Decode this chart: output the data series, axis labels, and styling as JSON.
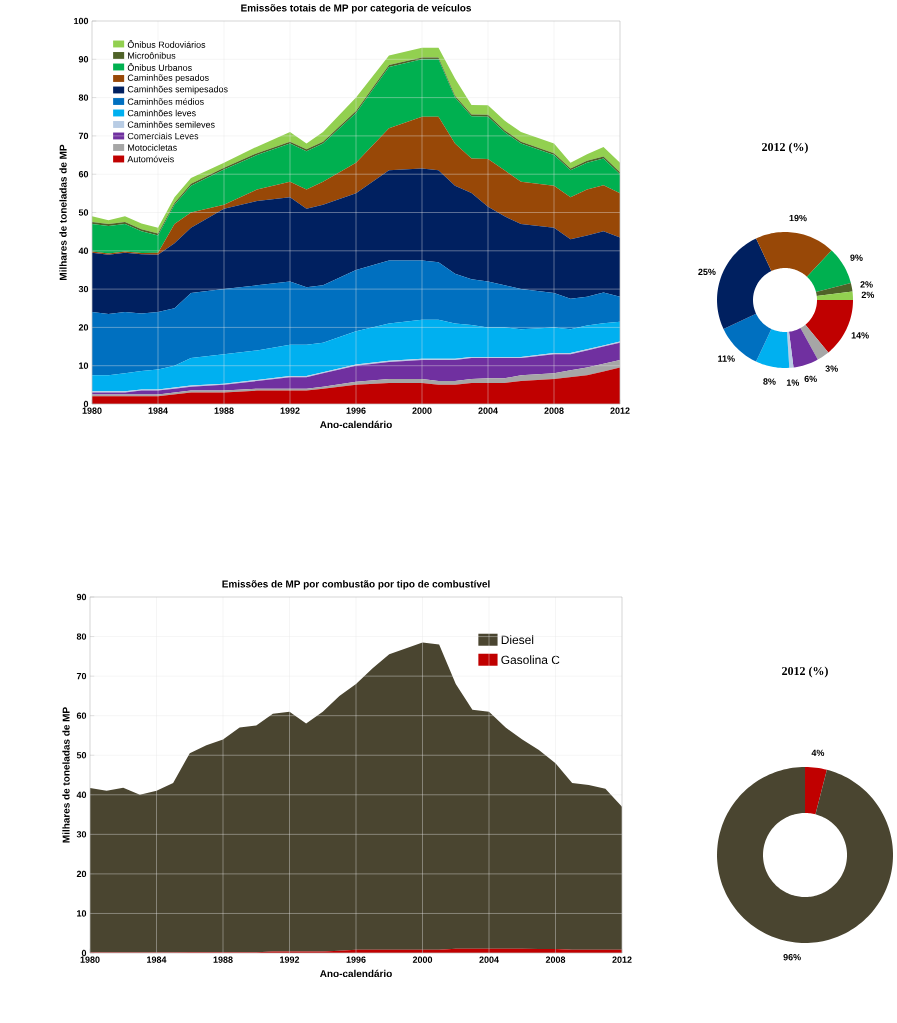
{
  "chart_data": [
    {
      "type": "area",
      "title": "Emissões totais de MP por categoria de veículos",
      "xlabel": "Ano-calendário",
      "ylabel": "Milhares de toneladas de MP",
      "stacked": true,
      "grid": true,
      "legend": "top left",
      "xlim": [
        1980,
        2012
      ],
      "ylim": [
        0,
        100
      ],
      "xticks": [
        1980,
        1984,
        1988,
        1992,
        1996,
        2000,
        2004,
        2008,
        2012
      ],
      "yticks": [
        0,
        10,
        20,
        30,
        40,
        50,
        60,
        70,
        80,
        90,
        100
      ],
      "x": [
        1980,
        1981,
        1982,
        1983,
        1984,
        1985,
        1986,
        1988,
        1990,
        1992,
        1993,
        1994,
        1996,
        1998,
        2000,
        2001,
        2002,
        2003,
        2004,
        2005,
        2006,
        2008,
        2009,
        2010,
        2011,
        2012
      ],
      "series": [
        {
          "name": "Automóveis",
          "color": "#c00000",
          "values": [
            2,
            2,
            2,
            2,
            2,
            2.5,
            3,
            3,
            3.5,
            3.5,
            3.5,
            4,
            5,
            5.5,
            5.5,
            5,
            5,
            5.5,
            5.5,
            5.5,
            6,
            6.5,
            7,
            7.5,
            8.5,
            9.5
          ]
        },
        {
          "name": "Motocicletas",
          "color": "#a6a6a6",
          "values": [
            0.5,
            0.5,
            0.5,
            0.5,
            0.5,
            0.5,
            0.5,
            0.5,
            0.5,
            0.5,
            0.5,
            0.5,
            0.8,
            1,
            1,
            1,
            1,
            1,
            1.2,
            1.2,
            1.5,
            1.5,
            1.8,
            2,
            2,
            2
          ]
        },
        {
          "name": "Comerciais Leves",
          "color": "#7030a0",
          "values": [
            0.5,
            0.5,
            0.5,
            1,
            1,
            1,
            1,
            1.5,
            2,
            3,
            3,
            3.5,
            4.2,
            4.5,
            5,
            5.5,
            5.5,
            5.5,
            5.3,
            5.3,
            4.5,
            5,
            4.2,
            4.5,
            4.5,
            4.5
          ]
        },
        {
          "name": "Caminhões semileves",
          "color": "#b8cce4",
          "values": [
            0.3,
            0.3,
            0.3,
            0.3,
            0.3,
            0.3,
            0.3,
            0.3,
            0.3,
            0.3,
            0.3,
            0.3,
            0.3,
            0.3,
            0.3,
            0.3,
            0.3,
            0.3,
            0.3,
            0.3,
            0.3,
            0.3,
            0.3,
            0.3,
            0.3,
            0.3
          ]
        },
        {
          "name": "Caminhões leves",
          "color": "#00b0f0",
          "values": [
            4.2,
            4.2,
            4.7,
            4.8,
            5.2,
            5.7,
            7.2,
            7.7,
            7.7,
            8.2,
            8.2,
            7.7,
            8.7,
            9.7,
            10.2,
            10.2,
            9.2,
            8.3,
            7.7,
            7.7,
            7.2,
            6.7,
            6.2,
            6.2,
            5.8,
            5.2
          ]
        },
        {
          "name": "Caminhões médios",
          "color": "#0070c0",
          "values": [
            16.5,
            16,
            16,
            15,
            15,
            15,
            17,
            17,
            17,
            16.5,
            15,
            15,
            16,
            16.5,
            15.5,
            15,
            13,
            12,
            12,
            11,
            10.5,
            9,
            8,
            7.5,
            8,
            6.5
          ]
        },
        {
          "name": "Caminhões semipesados",
          "color": "#002060",
          "values": [
            15.5,
            15.5,
            15.5,
            15.5,
            15,
            17,
            17,
            21,
            22,
            22,
            20.5,
            21,
            20,
            23.5,
            24,
            24,
            23,
            22.5,
            19.5,
            18,
            17,
            17,
            15.5,
            16,
            16,
            15.5
          ]
        },
        {
          "name": "Caminhões pesados",
          "color": "#984807",
          "values": [
            0.3,
            0.3,
            0.3,
            0.3,
            0.5,
            5,
            4,
            1,
            3,
            4,
            5,
            6,
            8,
            11,
            13.5,
            14,
            11,
            9,
            12.5,
            12,
            11,
            11,
            11,
            12,
            12,
            11.5
          ]
        },
        {
          "name": "Ônibus Urbanos",
          "color": "#00b050",
          "values": [
            7.2,
            7.2,
            7.2,
            5.7,
            4.5,
            5,
            7,
            9.2,
            9,
            10,
            10,
            10,
            13,
            16,
            15,
            15,
            12,
            11,
            11,
            10,
            10,
            8,
            7,
            7,
            7,
            5
          ]
        },
        {
          "name": "Microônibus",
          "color": "#4f6228",
          "values": [
            0.5,
            0.5,
            0.5,
            0.5,
            0.5,
            0.5,
            0.5,
            0.5,
            0.5,
            0.5,
            0.5,
            0.5,
            0.5,
            0.5,
            0.5,
            0.5,
            0.5,
            0.5,
            0.5,
            0.5,
            0.5,
            0.5,
            0.5,
            0.5,
            0.5,
            0.5
          ]
        },
        {
          "name": "Ônibus Rodoviários",
          "color": "#92d050",
          "values": [
            1.5,
            1,
            1.5,
            1.5,
            1.5,
            1.5,
            1.5,
            1.3,
            1.7,
            2.5,
            1.5,
            2.5,
            3.5,
            2.5,
            2.5,
            2.5,
            4.5,
            2.5,
            2.5,
            2.5,
            2.5,
            2.5,
            1.5,
            1.7,
            2.5,
            2.5
          ]
        }
      ]
    },
    {
      "type": "donut",
      "title": "2012 (%)",
      "categories": [
        null,
        null,
        null,
        null,
        null,
        null,
        null,
        null,
        null,
        null,
        null
      ],
      "values": [
        14,
        3,
        6,
        1,
        8,
        11,
        25,
        19,
        9,
        2,
        2
      ],
      "colors": [
        "#c00000",
        "#a6a6a6",
        "#7030a0",
        "#b8cce4",
        "#00b0f0",
        "#0070c0",
        "#002060",
        "#984807",
        "#00b050",
        "#4f6228",
        "#92d050"
      ],
      "value_labels": [
        "14%",
        "3%",
        "6%",
        "1%",
        "8%",
        "11%",
        "25%",
        "19%",
        "9%",
        "2%",
        "2%"
      ]
    },
    {
      "type": "area",
      "title": "Emissões de MP por combustão por tipo de combustível",
      "xlabel": "Ano-calendário",
      "ylabel": "Milhares de toneladas de MP",
      "stacked": true,
      "grid": true,
      "legend": "top right",
      "xlim": [
        1980,
        2012
      ],
      "ylim": [
        0,
        90
      ],
      "xticks": [
        1980,
        1984,
        1988,
        1992,
        1996,
        2000,
        2004,
        2008,
        2012
      ],
      "yticks": [
        0,
        10,
        20,
        30,
        40,
        50,
        60,
        70,
        80,
        90
      ],
      "x": [
        1980,
        1981,
        1982,
        1983,
        1984,
        1985,
        1986,
        1987,
        1988,
        1989,
        1990,
        1991,
        1992,
        1993,
        1994,
        1995,
        1996,
        1997,
        1998,
        1999,
        2000,
        2001,
        2002,
        2003,
        2004,
        2005,
        2006,
        2007,
        2008,
        2009,
        2010,
        2011,
        2012
      ],
      "series": [
        {
          "name": "Gasolina C",
          "color": "#c00000",
          "values": [
            0.1,
            0.1,
            0.1,
            0.1,
            0.1,
            0.1,
            0.2,
            0.2,
            0.2,
            0.2,
            0.2,
            0.4,
            0.4,
            0.4,
            0.4,
            0.6,
            0.8,
            0.8,
            0.8,
            0.8,
            0.8,
            0.8,
            1.1,
            1.1,
            1.1,
            1.1,
            1.1,
            1,
            1,
            0.8,
            0.8,
            0.8,
            0.8
          ]
        },
        {
          "name": "Diesel",
          "color": "#4a4530",
          "values": [
            41.6,
            40.9,
            41.7,
            39.9,
            40.9,
            42.9,
            50.3,
            52.3,
            53.8,
            56.8,
            57.3,
            60.1,
            60.6,
            57.6,
            60.6,
            64.4,
            67.2,
            71.2,
            74.7,
            76.2,
            77.7,
            77.2,
            66.9,
            60.4,
            59.9,
            55.9,
            52.9,
            50.3,
            47,
            42.2,
            41.7,
            40.7,
            36.2
          ]
        }
      ]
    },
    {
      "type": "donut",
      "title": "2012 (%)",
      "categories": [
        null,
        null
      ],
      "values": [
        4,
        96
      ],
      "colors": [
        "#c00000",
        "#4a4530"
      ],
      "value_labels": [
        "4%",
        "96%"
      ]
    }
  ]
}
